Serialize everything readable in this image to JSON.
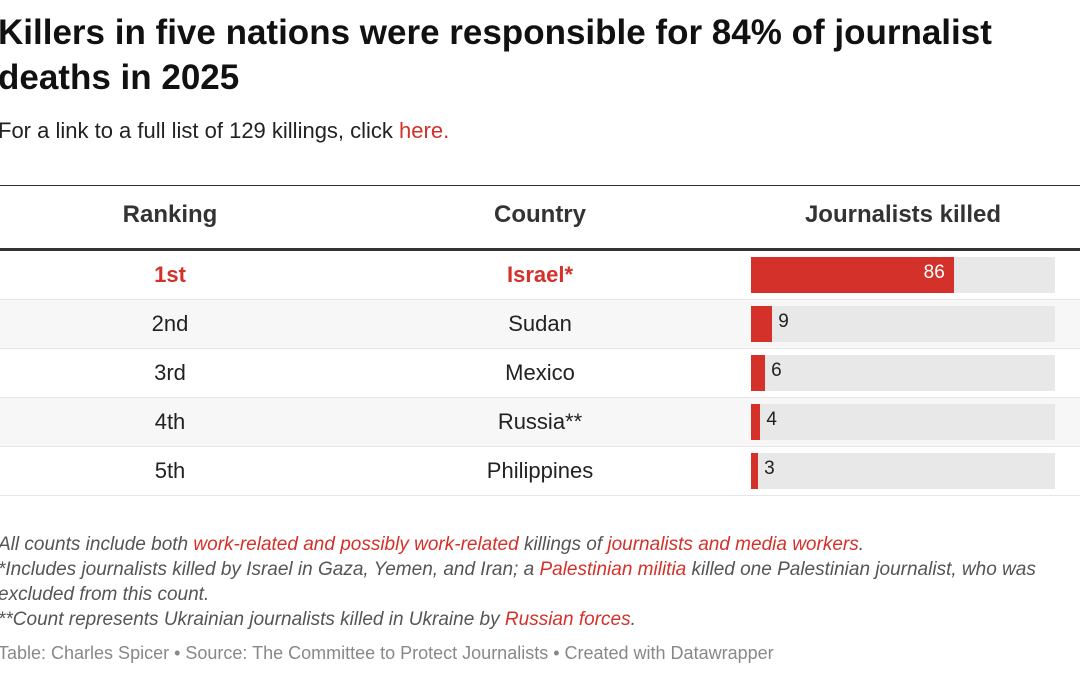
{
  "title": "Killers in five nations were responsible for 84% of journalist deaths in 2025",
  "subtitle": {
    "text": "For a link to a full list of 129 killings, click ",
    "link": "here."
  },
  "colors": {
    "accent": "#d4312a",
    "track": "#e8e8e8"
  },
  "chart_data": {
    "type": "table",
    "columns": [
      "Ranking",
      "Country",
      "Journalists killed"
    ],
    "bar_max": 129,
    "rows": [
      {
        "ranking": "1st",
        "country": "Israel*",
        "killed": 86,
        "label": "86",
        "highlight": true
      },
      {
        "ranking": "2nd",
        "country": "Sudan",
        "killed": 9,
        "label": "9"
      },
      {
        "ranking": "3rd",
        "country": "Mexico",
        "killed": 6,
        "label": "6"
      },
      {
        "ranking": "4th",
        "country": "Russia**",
        "killed": 4,
        "label": "4"
      },
      {
        "ranking": "5th",
        "country": "Philippines",
        "killed": 3,
        "label": "3"
      }
    ]
  },
  "notes": {
    "n1": {
      "a": "All counts include both ",
      "l1": "work-related and possibly work-related",
      "b": " killings of ",
      "l2": "journalists and media workers",
      "c": "."
    },
    "n2": {
      "a": "*Includes journalists killed by Israel in Gaza, Yemen, and Iran; a ",
      "l1": "Palestinian militia",
      "b": " killed one Palestinian journalist, who was excluded from this count."
    },
    "n3": {
      "a": "**Count represents Ukrainian journalists killed in Ukraine by ",
      "l1": "Russian forces",
      "b": "."
    }
  },
  "credit": "Table: Charles Spicer • Source: The Committee to Protect Journalists • Created with Datawrapper"
}
